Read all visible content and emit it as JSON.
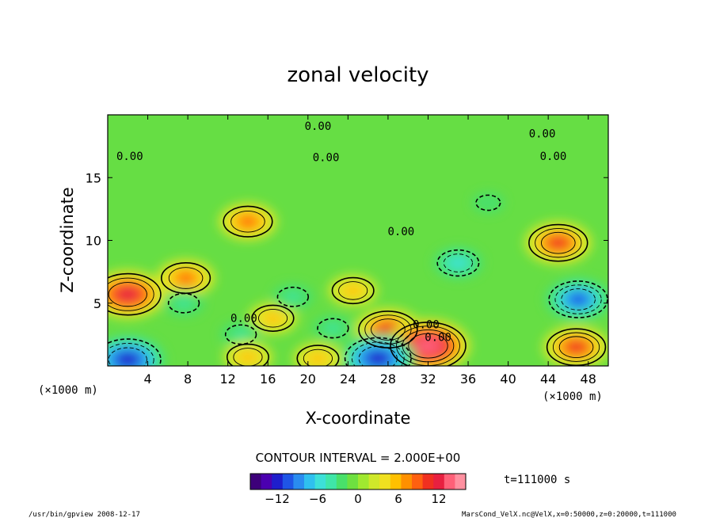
{
  "chart_data": {
    "type": "heatmap",
    "title": "zonal velocity",
    "xlabel": "X-coordinate",
    "ylabel": "Z-coordinate",
    "x_unit_note": "(×1000 m)",
    "y_unit_note": "(×1000 m)",
    "xlim": [
      0,
      50
    ],
    "ylim": [
      0,
      20
    ],
    "x_ticks": [
      4,
      8,
      12,
      16,
      20,
      24,
      28,
      32,
      36,
      40,
      44,
      48
    ],
    "y_ticks": [
      5,
      10,
      15
    ],
    "contour_interval_text": "CONTOUR INTERVAL = 2.000E+00",
    "time_text": "t=111000 s",
    "colorbar": {
      "range": [
        -16,
        16
      ],
      "ticks": [
        -12,
        -6,
        0,
        6,
        12
      ],
      "colors": [
        "#3d007a",
        "#4b00b0",
        "#1e1ecc",
        "#1f55e6",
        "#2a8cf0",
        "#2fc0ef",
        "#3de0d8",
        "#3fe6a8",
        "#49e06a",
        "#6ee040",
        "#a0e830",
        "#cfe82a",
        "#f0e020",
        "#ffc000",
        "#ff9000",
        "#ff6010",
        "#f03020",
        "#e82040",
        "#ff6078",
        "#ff90a0"
      ]
    },
    "contour_labels": [
      {
        "x": 21.0,
        "z": 18.8,
        "text": "0.00"
      },
      {
        "x": 43.4,
        "z": 18.2,
        "text": "0.00"
      },
      {
        "x": 44.5,
        "z": 16.4,
        "text": "0.00"
      },
      {
        "x": 2.2,
        "z": 16.4,
        "text": "0.00"
      },
      {
        "x": 21.8,
        "z": 16.3,
        "text": "0.00"
      },
      {
        "x": 29.3,
        "z": 10.4,
        "text": "0.00"
      },
      {
        "x": 13.6,
        "z": 3.5,
        "text": "0.00"
      },
      {
        "x": 31.8,
        "z": 3.0,
        "text": "0.00"
      },
      {
        "x": 33.0,
        "z": 2.0,
        "text": "0.00"
      }
    ],
    "features": [
      {
        "x": 2.0,
        "z": 5.7,
        "value": 12,
        "label": "positive max"
      },
      {
        "x": 14.0,
        "z": 11.5,
        "value": 8,
        "label": "positive"
      },
      {
        "x": 45.0,
        "z": 9.8,
        "value": 10,
        "label": "positive"
      },
      {
        "x": 28.0,
        "z": 2.9,
        "value": 10,
        "label": "positive"
      },
      {
        "x": 32.0,
        "z": 1.6,
        "value": 14,
        "label": "positive max"
      },
      {
        "x": 46.8,
        "z": 1.5,
        "value": 10,
        "label": "positive"
      },
      {
        "x": 7.8,
        "z": 7.0,
        "value": 8,
        "label": "positive"
      },
      {
        "x": 24.5,
        "z": 6.0,
        "value": 6,
        "label": "positive"
      },
      {
        "x": 16.5,
        "z": 3.8,
        "value": 6,
        "label": "positive"
      },
      {
        "x": 2.0,
        "z": 0.5,
        "value": -12,
        "label": "negative min"
      },
      {
        "x": 27.0,
        "z": 0.6,
        "value": -12,
        "label": "negative min"
      },
      {
        "x": 47.0,
        "z": 5.3,
        "value": -10,
        "label": "negative"
      },
      {
        "x": 35.0,
        "z": 8.2,
        "value": -6,
        "label": "negative"
      },
      {
        "x": 18.5,
        "z": 5.5,
        "value": -4,
        "label": "negative"
      },
      {
        "x": 13.3,
        "z": 2.5,
        "value": -4,
        "label": "negative"
      },
      {
        "x": 7.6,
        "z": 5.0,
        "value": -4,
        "label": "negative"
      },
      {
        "x": 22.5,
        "z": 3.0,
        "value": -4,
        "label": "negative"
      },
      {
        "x": 38.0,
        "z": 13.0,
        "value": -2,
        "label": "negative"
      },
      {
        "x": 21.0,
        "z": 0.6,
        "value": 6,
        "label": "positive"
      },
      {
        "x": 14.0,
        "z": 0.7,
        "value": 6,
        "label": "positive"
      }
    ]
  },
  "footer": {
    "left": "/usr/bin/gpview   2008-12-17",
    "right": "MarsCond_VelX.nc@VelX,x=0:50000,z=0:20000,t=111000"
  }
}
